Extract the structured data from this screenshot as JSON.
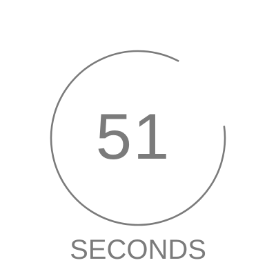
{
  "timer": {
    "value": "51",
    "unit_label": "SECONDS",
    "total_seconds": 60,
    "progress_fraction": 0.85
  },
  "colors": {
    "ring": "#7b7b7b",
    "text": "#7b7b7b",
    "background": "#ffffff"
  }
}
